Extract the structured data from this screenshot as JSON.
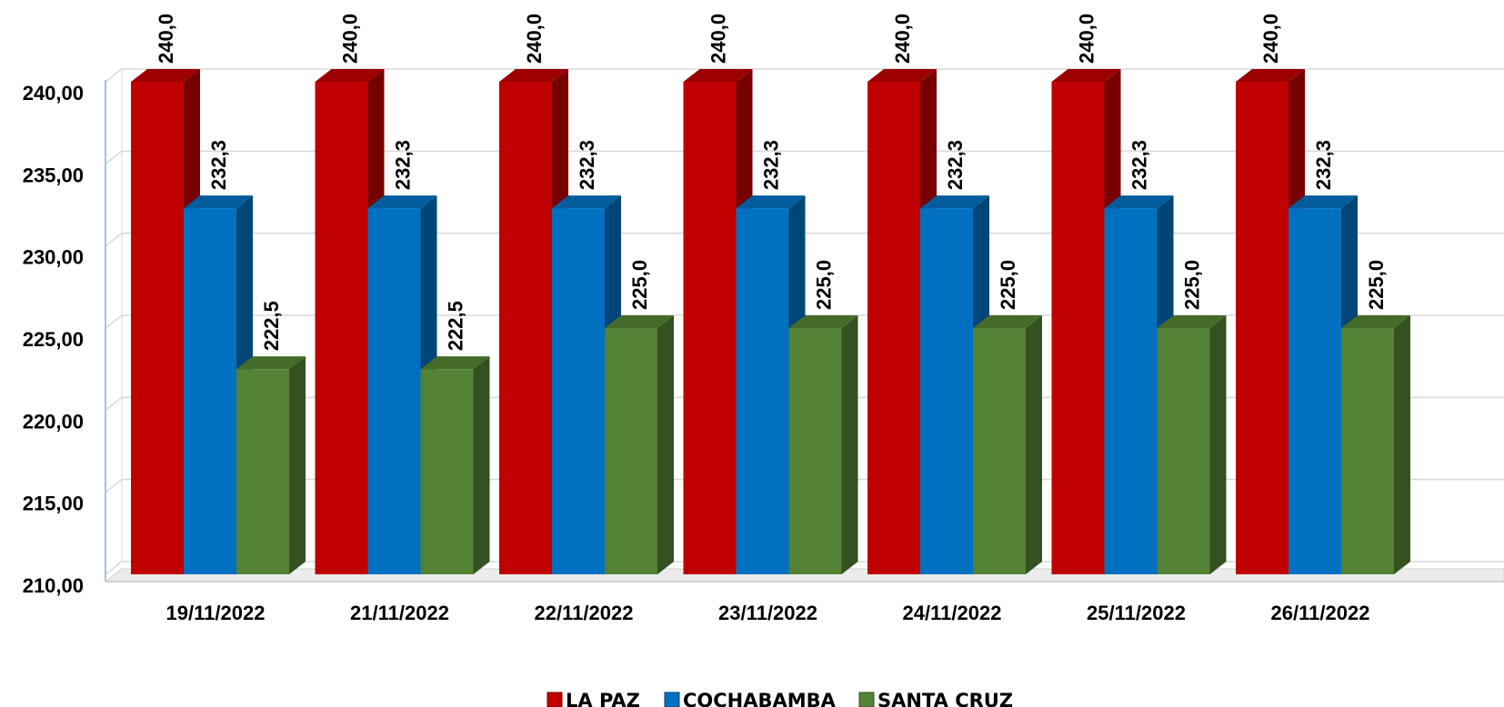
{
  "chart_data": {
    "type": "bar",
    "style": "3d-clustered-column",
    "categories": [
      "19/11/2022",
      "21/11/2022",
      "22/11/2022",
      "23/11/2022",
      "24/11/2022",
      "25/11/2022",
      "26/11/2022"
    ],
    "series": [
      {
        "name": "LA PAZ",
        "color": "#c00000",
        "values": [
          240.0,
          240.0,
          240.0,
          240.0,
          240.0,
          240.0,
          240.0
        ],
        "labels": [
          "240,0",
          "240,0",
          "240,0",
          "240,0",
          "240,0",
          "240,0",
          "240,0"
        ]
      },
      {
        "name": "COCHABAMBA",
        "color": "#0070c0",
        "values": [
          232.3,
          232.3,
          232.3,
          232.3,
          232.3,
          232.3,
          232.3
        ],
        "labels": [
          "232,3",
          "232,3",
          "232,3",
          "232,3",
          "232,3",
          "232,3",
          "232,3"
        ]
      },
      {
        "name": "SANTA CRUZ",
        "color": "#548235",
        "values": [
          222.5,
          222.5,
          225.0,
          225.0,
          225.0,
          225.0,
          225.0
        ],
        "labels": [
          "222,5",
          "222,5",
          "225,0",
          "225,0",
          "225,0",
          "225,0",
          "225,0"
        ]
      }
    ],
    "yticks": [
      210,
      215,
      220,
      225,
      230,
      235,
      240
    ],
    "ytick_labels": [
      "210,00",
      "215,00",
      "220,00",
      "225,00",
      "230,00",
      "235,00",
      "240,00"
    ],
    "ylim": [
      210,
      240
    ],
    "grid": true,
    "legend_position": "bottom"
  }
}
